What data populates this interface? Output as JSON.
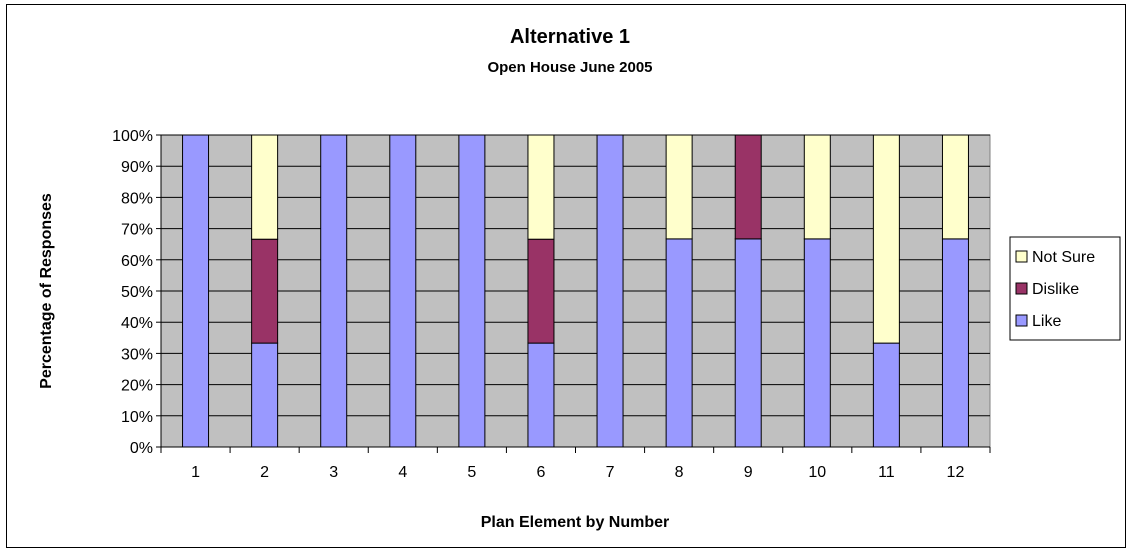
{
  "colors": {
    "like": "#9999ff",
    "dislike": "#993366",
    "not_sure": "#ffffcc",
    "plot_bg": "#c0c0c0"
  },
  "chart_data": {
    "type": "bar",
    "stacked": true,
    "percent_stacked": true,
    "title": "Alternative 1",
    "subtitle": "Open House June 2005",
    "xlabel": "Plan Element by Number",
    "ylabel": "Percentage of Responses",
    "categories": [
      "1",
      "2",
      "3",
      "4",
      "5",
      "6",
      "7",
      "8",
      "9",
      "10",
      "11",
      "12"
    ],
    "y_ticks": [
      "0%",
      "10%",
      "20%",
      "30%",
      "40%",
      "50%",
      "60%",
      "70%",
      "80%",
      "90%",
      "100%"
    ],
    "ylim": [
      0,
      100
    ],
    "grid": true,
    "legend_position": "right",
    "series": [
      {
        "name": "Like",
        "values": [
          100,
          33.3,
          100,
          100,
          100,
          33.3,
          100,
          66.7,
          66.7,
          66.7,
          33.3,
          66.7
        ]
      },
      {
        "name": "Dislike",
        "values": [
          0,
          33.3,
          0,
          0,
          0,
          33.3,
          0,
          0,
          33.3,
          0,
          0,
          0
        ]
      },
      {
        "name": "Not Sure",
        "values": [
          0,
          33.4,
          0,
          0,
          0,
          33.4,
          0,
          33.3,
          0,
          33.3,
          66.7,
          33.3
        ]
      }
    ],
    "legend": [
      "Not Sure",
      "Dislike",
      "Like"
    ]
  }
}
